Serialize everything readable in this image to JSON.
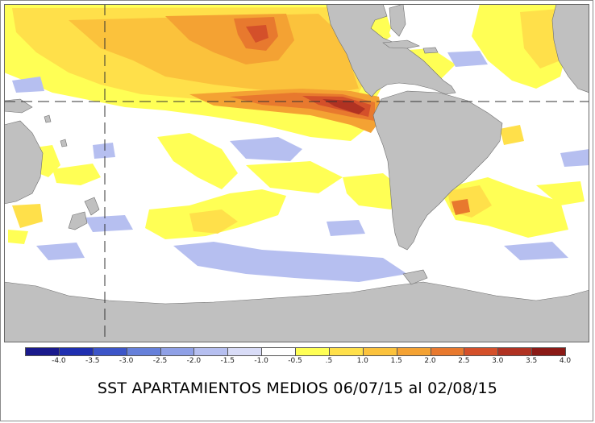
{
  "caption": "SST APARTAMIENTOS MEDIOS 06/07/15 al 02/08/15",
  "legend": {
    "colors": [
      "#1a1a8c",
      "#1f2fb0",
      "#3c55c8",
      "#6680da",
      "#8fa0e6",
      "#b6bff0",
      "#d9dcf7",
      "#ffffff",
      "#ffff55",
      "#ffe04a",
      "#fbc23c",
      "#f4a233",
      "#e8792e",
      "#d4502a",
      "#b03222",
      "#8b1a16"
    ],
    "tick_labels": [
      "-4.0",
      "-3.5",
      "-3.0",
      "-2.5",
      "-2.0",
      "-1.5",
      "-1.0",
      "-0.5",
      ".5",
      "1.0",
      "1.5",
      "2.0",
      "2.5",
      "3.0",
      "3.5",
      "4.0"
    ]
  },
  "map": {
    "land_color": "#c0c0c0",
    "ocean_color": "#ffffff",
    "reference_lines": "dashed"
  }
}
